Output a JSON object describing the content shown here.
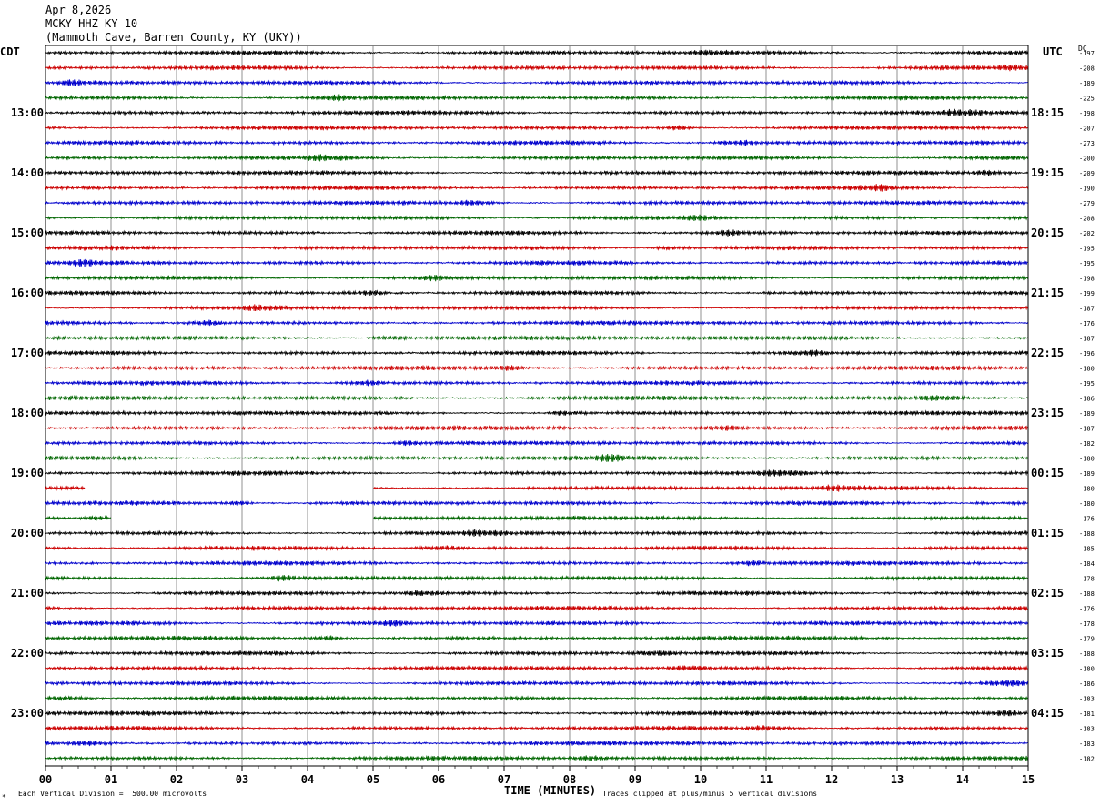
{
  "header": {
    "date": "Apr 8,2026",
    "station": "MCKY HHZ KY 10",
    "location": "(Mammoth Cave, Barren County, KY (UKY))"
  },
  "labels": {
    "left_tz": "CDT",
    "right_tz": "UTC",
    "dc": "DC",
    "x_axis": "TIME (MINUTES)",
    "scale_note": "Each Vertical Division =  500.00 microvolts",
    "clip_note": "Traces clipped at plus/minus 5 vertical divisions",
    "corner_mark": "*"
  },
  "colors": [
    "#000000",
    "#cc0000",
    "#0000cc",
    "#006600"
  ],
  "chart_data": {
    "type": "line",
    "x_ticks": [
      "00",
      "01",
      "02",
      "03",
      "04",
      "05",
      "06",
      "07",
      "08",
      "09",
      "10",
      "11",
      "12",
      "13",
      "14",
      "15"
    ],
    "xlim": [
      0,
      15
    ],
    "xlabel": "TIME (MINUTES)",
    "rows_per_hour": 4,
    "row_count": 48,
    "left_hour_labels": [
      "13:00",
      "14:00",
      "15:00",
      "16:00",
      "17:00",
      "18:00",
      "19:00",
      "20:00",
      "21:00",
      "22:00",
      "23:00"
    ],
    "right_hour_labels": [
      "18:15",
      "19:15",
      "20:15",
      "21:15",
      "22:15",
      "23:15",
      "00:15",
      "01:15",
      "02:15",
      "03:15",
      "04:15"
    ],
    "dc_offsets": [
      "-197",
      "-208",
      "-189",
      "-225",
      "-198",
      "-207",
      "-273",
      "-200",
      "-209",
      "-190",
      "-279",
      "-208",
      "-202",
      "-195",
      "-195",
      "-198",
      "-199",
      "-187",
      "-176",
      "-187",
      "-196",
      "-180",
      "-195",
      "-186",
      "-189",
      "-187",
      "-182",
      "-180",
      "-189",
      "-180",
      "-180",
      "-176",
      "-188",
      "-185",
      "-184",
      "-178",
      "-188",
      "-176",
      "-178",
      "-179",
      "-188",
      "-180",
      "-186",
      "-183",
      "-181",
      "-183",
      "-183",
      "-182"
    ],
    "gaps": [
      {
        "row": 29,
        "from_minute": 0.6,
        "to_minute": 5.0
      },
      {
        "row": 30,
        "from_minute": 0.0,
        "to_minute": 0.0
      },
      {
        "row": 31,
        "from_minute": 1.0,
        "to_minute": 5.0
      }
    ]
  }
}
